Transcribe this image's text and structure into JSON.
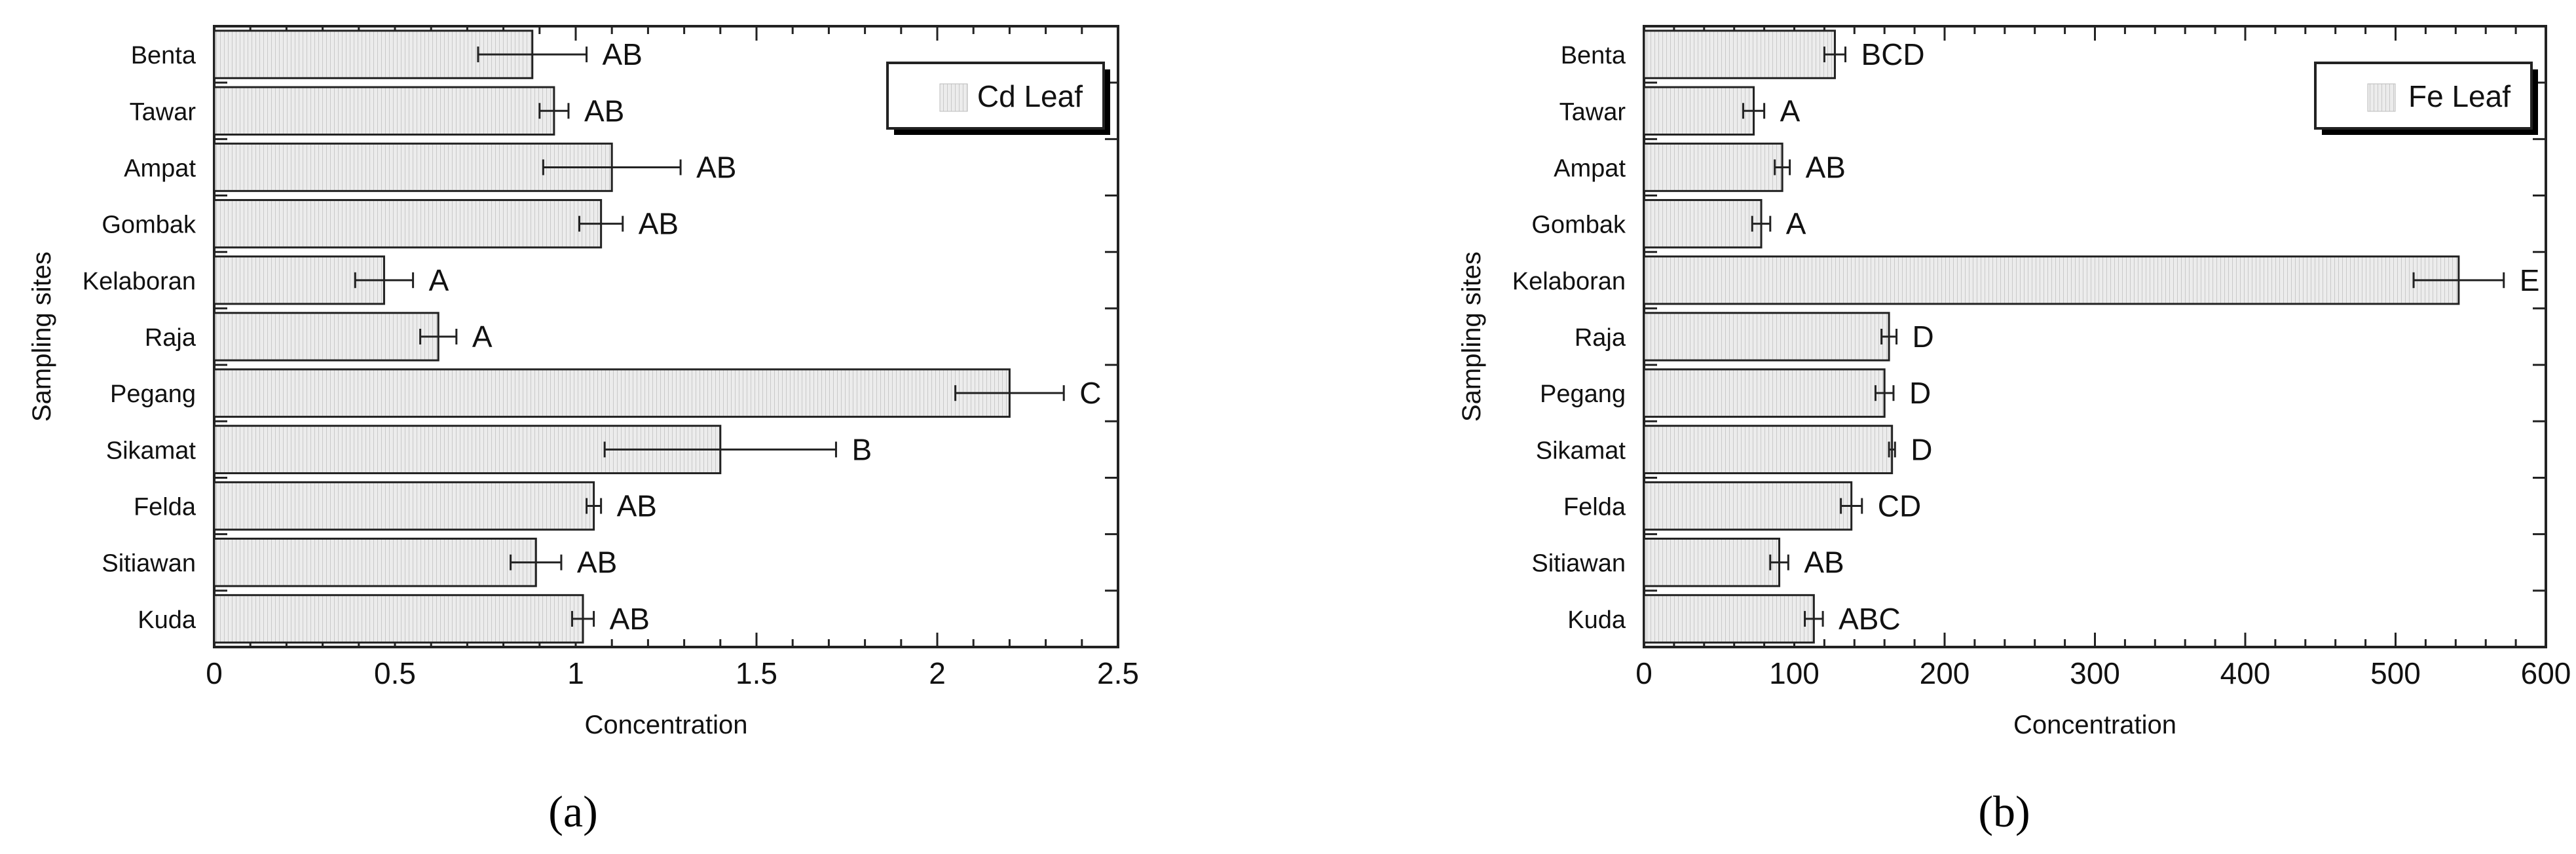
{
  "colors": {
    "bar_fill": "#eeeeee",
    "bar_stroke": "#222222",
    "axis": "#222222",
    "text": "#111111",
    "background": "#ffffff"
  },
  "chart_data": [
    {
      "type": "bar",
      "orientation": "horizontal",
      "panel_label": "(a)",
      "categories": [
        "Benta",
        "Tawar",
        "Ampat",
        "Gombak",
        "Kelaboran",
        "Raja",
        "Pegang",
        "Sikamat",
        "Felda",
        "Sitiawan",
        "Kuda"
      ],
      "values": [
        0.88,
        0.94,
        1.1,
        1.07,
        0.47,
        0.62,
        2.2,
        1.4,
        1.05,
        0.89,
        1.02
      ],
      "errors": [
        0.15,
        0.04,
        0.19,
        0.06,
        0.08,
        0.05,
        0.15,
        0.32,
        0.02,
        0.07,
        0.03
      ],
      "significance": [
        "AB",
        "AB",
        "AB",
        "AB",
        "A",
        "A",
        "C",
        "B",
        "AB",
        "AB",
        "AB"
      ],
      "legend": [
        "Cd Leaf"
      ],
      "legend_position": "top-right",
      "xlabel": "Concentration",
      "ylabel": "Sampling sites",
      "xlim": [
        0,
        2.5
      ],
      "xticks": [
        0,
        0.5,
        1,
        1.5,
        2,
        2.5
      ],
      "xtick_labels": [
        "0",
        "0.5",
        "1",
        "1.5",
        "2",
        "2.5"
      ],
      "grid": false
    },
    {
      "type": "bar",
      "orientation": "horizontal",
      "panel_label": "(b)",
      "categories": [
        "Benta",
        "Tawar",
        "Ampat",
        "Gombak",
        "Kelaboran",
        "Raja",
        "Pegang",
        "Sikamat",
        "Felda",
        "Sitiawan",
        "Kuda"
      ],
      "values": [
        127,
        73,
        92,
        78,
        542,
        163,
        160,
        165,
        138,
        90,
        113
      ],
      "errors": [
        7,
        7,
        5,
        6,
        30,
        5,
        6,
        2,
        7,
        6,
        6
      ],
      "significance": [
        "BCD",
        "A",
        "AB",
        "A",
        "E",
        "D",
        "D",
        "D",
        "CD",
        "AB",
        "ABC"
      ],
      "legend": [
        "Fe Leaf"
      ],
      "legend_position": "top-right",
      "xlabel": "Concentration",
      "ylabel": "Sampling sites",
      "xlim": [
        0,
        600
      ],
      "xticks": [
        0,
        100,
        200,
        300,
        400,
        500,
        600
      ],
      "xtick_labels": [
        "0",
        "100",
        "200",
        "300",
        "400",
        "500",
        "600"
      ],
      "grid": false
    }
  ]
}
